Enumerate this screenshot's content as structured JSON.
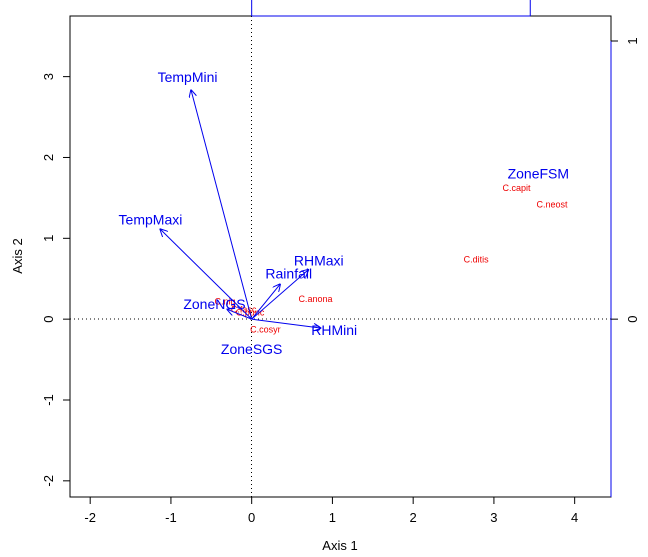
{
  "chart_data": {
    "type": "scatter",
    "subtype": "biplot",
    "title": "",
    "xlabel": "Axis 1",
    "ylabel": "Axis 2",
    "xlim": [
      -2.25,
      4.45
    ],
    "ylim": [
      -2.2,
      3.75
    ],
    "x_ticks": [
      "-2",
      "-1",
      "0",
      "1",
      "2",
      "3",
      "4"
    ],
    "y_ticks": [
      "-2",
      "-1",
      "0",
      "1",
      "2",
      "3"
    ],
    "secondary_axes": {
      "top_ticks": [
        "",
        ""
      ],
      "right_ticks": [
        "0",
        "1"
      ]
    },
    "reference_lines": {
      "x0": true,
      "y0": true,
      "style": "dotted"
    },
    "colors": {
      "vectors": "#0000ee",
      "species": "#ee0000",
      "axes": "#000000",
      "secondary_axes": "#0000ee"
    },
    "vectors": [
      {
        "label": "TempMini",
        "x": -0.75,
        "y": 2.83
      },
      {
        "label": "TempMaxi",
        "x": -1.13,
        "y": 1.11
      },
      {
        "label": "RHMaxi",
        "x": 0.7,
        "y": 0.61
      },
      {
        "label": "Rainfall",
        "x": 0.35,
        "y": 0.43
      },
      {
        "label": "RHMini",
        "x": 0.85,
        "y": -0.11
      },
      {
        "label": "ZoneNGS",
        "x": -0.3,
        "y": 0.12
      }
    ],
    "centroids": [
      {
        "label": "ZoneFSM",
        "x": 3.55,
        "y": 1.8
      },
      {
        "label": "ZoneSGS",
        "x": 0.0,
        "y": -0.37
      }
    ],
    "species": [
      {
        "label": "C.capit",
        "x": 3.28,
        "y": 1.62
      },
      {
        "label": "C.neost",
        "x": 3.72,
        "y": 1.42
      },
      {
        "label": "C.ditis",
        "x": 2.78,
        "y": 0.74
      },
      {
        "label": "C.anona",
        "x": 0.79,
        "y": 0.25
      },
      {
        "label": "C.cosyr",
        "x": 0.17,
        "y": -0.13
      },
      {
        "label": "C.nig",
        "x": -0.33,
        "y": 0.22
      },
      {
        "label": "C.fasc",
        "x": -0.1,
        "y": 0.12
      },
      {
        "label": "C.punc",
        "x": -0.02,
        "y": 0.08
      }
    ]
  }
}
